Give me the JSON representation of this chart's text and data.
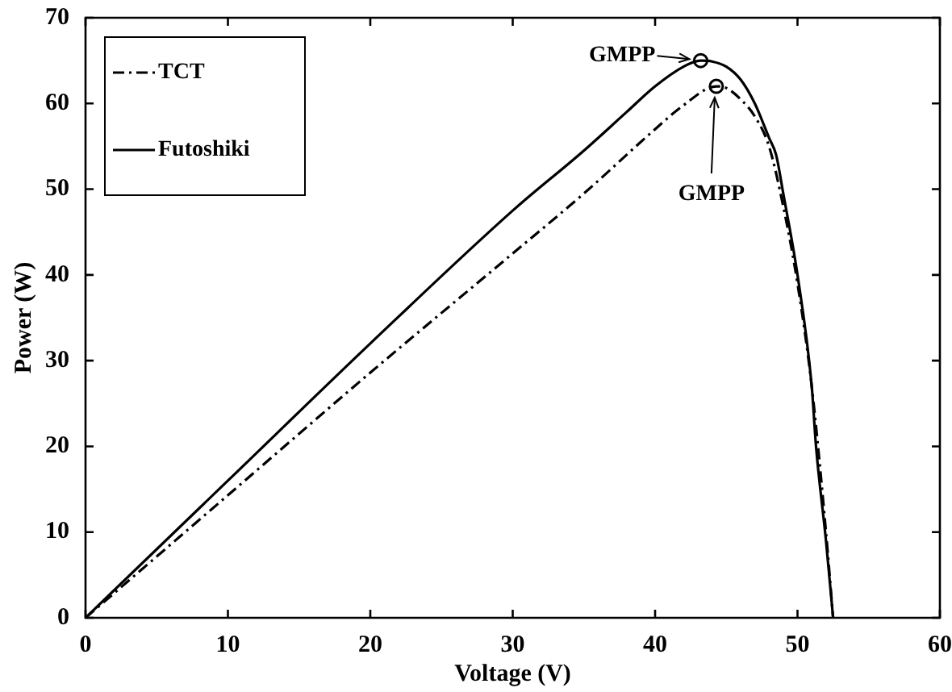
{
  "chart_data": {
    "type": "line",
    "xlabel": "Voltage (V)",
    "ylabel": "Power (W)",
    "xlim": [
      0,
      60
    ],
    "ylim": [
      0,
      70
    ],
    "xticks": [
      0,
      10,
      20,
      30,
      40,
      50,
      60
    ],
    "yticks": [
      0,
      10,
      20,
      30,
      40,
      50,
      60,
      70
    ],
    "grid": false,
    "legend": "top left",
    "marker": "none",
    "series": [
      {
        "name": "TCT",
        "color": "#000000",
        "line_style": "dashed",
        "x": [
          0,
          10,
          20,
          30,
          35,
          40,
          42,
          44.3,
          45,
          46,
          47,
          48,
          49,
          50,
          51,
          52,
          52.5
        ],
        "values": [
          0,
          14.3,
          28.6,
          42.5,
          49.5,
          57,
          59.8,
          62,
          61.8,
          60.5,
          58.5,
          55,
          48,
          39,
          27,
          10,
          0
        ]
      },
      {
        "name": "Futoshiki",
        "color": "#000000",
        "line_style": "solid",
        "x": [
          0,
          10,
          20,
          30,
          35,
          38,
          40,
          42,
          43.2,
          44,
          45,
          46,
          47,
          48,
          48.5,
          49,
          50,
          51,
          51.3,
          52,
          52.5
        ],
        "values": [
          0,
          16,
          32,
          47.5,
          54.5,
          59,
          62,
          64.3,
          65,
          64.9,
          64.3,
          62.8,
          60,
          56,
          54,
          49.5,
          40,
          27,
          20,
          9,
          0
        ]
      },
      {
        "type": "scatter",
        "color": "#000000",
        "marker": "circle",
        "x": [
          43.2,
          44.3
        ],
        "values": [
          65,
          62
        ]
      }
    ],
    "annotations": [
      {
        "text": "GMPP",
        "x": 43.2,
        "y": 65
      },
      {
        "text": "GMPP",
        "x": 44.3,
        "y": 62
      }
    ]
  }
}
